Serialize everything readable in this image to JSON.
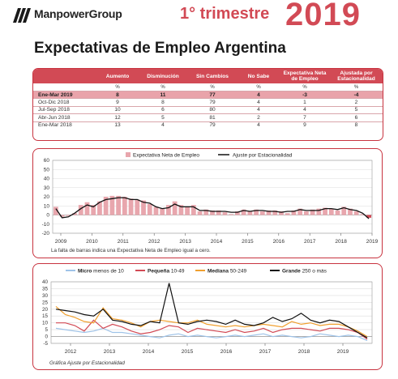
{
  "header": {
    "brand": "ManpowerGroup",
    "quarter": "1° trimestre",
    "year": "2019",
    "title": "Expectativas de Empleo Argentina",
    "brand_color": "#d24a55"
  },
  "table": {
    "columns": [
      "",
      "Aumento",
      "Disminución",
      "Sin Cambios",
      "No Sabe",
      "Expectativa Neta de Empleo",
      "Ajustada por Estacionalidad"
    ],
    "units": [
      "",
      "%",
      "%",
      "%",
      "%",
      "%",
      "%"
    ],
    "rows": [
      [
        "Ene-Mar 2019",
        "8",
        "11",
        "77",
        "4",
        "-3",
        "-4"
      ],
      [
        "Oct-Dic 2018",
        "9",
        "8",
        "79",
        "4",
        "1",
        "2"
      ],
      [
        "Jul-Sep 2018",
        "10",
        "6",
        "80",
        "4",
        "4",
        "5"
      ],
      [
        "Abr-Jun 2018",
        "12",
        "5",
        "81",
        "2",
        "7",
        "6"
      ],
      [
        "Ene-Mar 2018",
        "13",
        "4",
        "79",
        "4",
        "9",
        "8"
      ]
    ]
  },
  "chart_data": [
    {
      "type": "bar",
      "legend": [
        "Expectativa Neta de Empleo",
        "Ajuste por Estacionalidad"
      ],
      "legend_placement": "top",
      "note": "La falta de barras indica una Expectativa Neta de Empleo igual a cero.",
      "x_tick_labels": [
        "2009",
        "2010",
        "2011",
        "2012",
        "2013",
        "2014",
        "2015",
        "2016",
        "2017",
        "2018",
        "2019"
      ],
      "y_ticks": [
        60,
        50,
        40,
        30,
        20,
        10,
        0,
        -10,
        -20
      ],
      "ylim": [
        -20,
        60
      ],
      "grid": true,
      "series": [
        {
          "name": "Expectativa Neta de Empleo",
          "kind": "bar",
          "color": "#e8a6ad",
          "values": [
            9,
            -2,
            -1,
            2,
            11,
            14,
            11,
            15,
            20,
            21,
            21,
            20,
            18,
            17,
            16,
            12,
            9,
            7,
            11,
            15,
            11,
            9,
            11,
            4,
            6,
            5,
            5,
            3,
            1,
            4,
            6,
            4,
            6,
            4,
            5,
            5,
            4,
            2,
            5,
            7,
            4,
            6,
            7,
            8,
            7,
            5,
            9,
            7,
            4,
            1,
            -3
          ]
        },
        {
          "name": "Ajuste por Estacionalidad",
          "kind": "line",
          "color": "#111111",
          "values": [
            7,
            -3,
            -2,
            2,
            7,
            11,
            9,
            14,
            17,
            18,
            19,
            19,
            17,
            17,
            14,
            13,
            9,
            7,
            8,
            12,
            9,
            9,
            9,
            5,
            5,
            4,
            4,
            4,
            3,
            3,
            5,
            4,
            5,
            5,
            4,
            4,
            3,
            4,
            4,
            6,
            5,
            5,
            5,
            7,
            7,
            6,
            8,
            6,
            5,
            2,
            -4
          ]
        }
      ]
    },
    {
      "type": "line",
      "x_tick_labels": [
        "2012",
        "2013",
        "2014",
        "2015",
        "2016",
        "2017",
        "2018",
        "2019"
      ],
      "y_ticks": [
        40,
        35,
        30,
        25,
        20,
        15,
        10,
        5,
        0,
        -5
      ],
      "ylim": [
        -5,
        40
      ],
      "grid": true,
      "legend_placement": "top",
      "footnote": "Gráfica Ajuste por Estacionalidad",
      "series": [
        {
          "name": "Micro",
          "legend_suffix": "menos de 10",
          "color": "#9fc3e8",
          "values": [
            6,
            5,
            4,
            3,
            4,
            6,
            3,
            3,
            2,
            1,
            0,
            -1,
            1,
            2,
            0,
            1,
            0,
            -1,
            0,
            1,
            0,
            1,
            2,
            0,
            1,
            0,
            -1,
            0,
            2,
            1,
            0,
            1,
            0,
            -3
          ]
        },
        {
          "name": "Pequeña",
          "legend_suffix": "10-49",
          "color": "#d24a55",
          "values": [
            10,
            10,
            8,
            4,
            12,
            6,
            9,
            7,
            4,
            2,
            3,
            5,
            8,
            7,
            3,
            6,
            5,
            4,
            3,
            5,
            3,
            4,
            6,
            3,
            5,
            6,
            6,
            5,
            4,
            6,
            6,
            5,
            3,
            -2
          ]
        },
        {
          "name": "Mediana",
          "legend_suffix": "50-249",
          "color": "#f0a030",
          "values": [
            22,
            16,
            14,
            11,
            10,
            21,
            13,
            12,
            10,
            7,
            11,
            12,
            11,
            10,
            10,
            12,
            9,
            8,
            7,
            8,
            7,
            8,
            9,
            8,
            7,
            11,
            9,
            10,
            8,
            9,
            9,
            7,
            4,
            0
          ]
        },
        {
          "name": "Grande",
          "legend_suffix": "250 o más",
          "color": "#111111",
          "values": [
            20,
            19,
            18,
            16,
            15,
            20,
            12,
            11,
            9,
            8,
            11,
            10,
            39,
            10,
            9,
            11,
            12,
            11,
            9,
            12,
            9,
            8,
            10,
            14,
            11,
            13,
            17,
            12,
            10,
            12,
            11,
            7,
            3,
            -1
          ]
        }
      ]
    }
  ]
}
